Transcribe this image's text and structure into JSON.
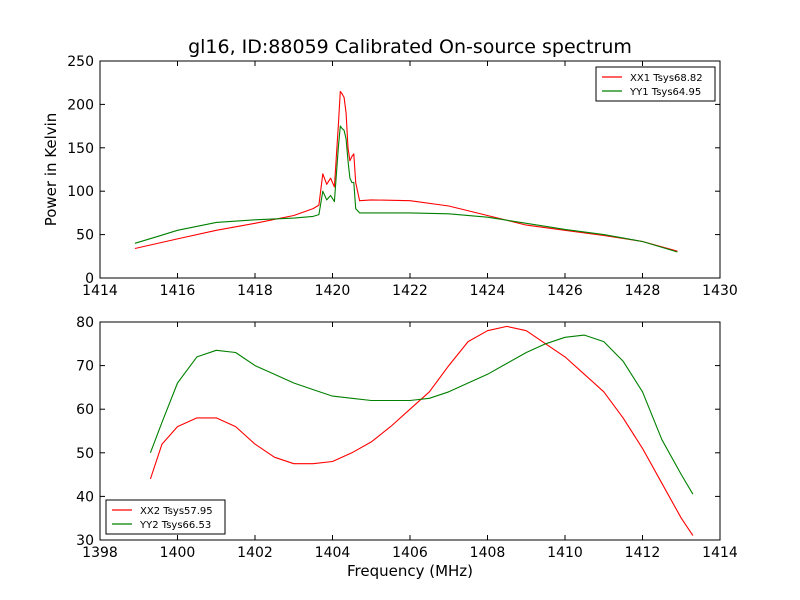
{
  "chart_data": [
    {
      "type": "line",
      "title": "gl16, ID:88059 Calibrated On-source spectrum",
      "xlabel": "",
      "ylabel": "Power in Kelvin",
      "xlim": [
        1414,
        1430
      ],
      "ylim": [
        0,
        250
      ],
      "xticks": [
        "1414",
        "1416",
        "1418",
        "1420",
        "1422",
        "1424",
        "1426",
        "1428",
        "1430"
      ],
      "yticks": [
        "0",
        "50",
        "100",
        "150",
        "200",
        "250"
      ],
      "grid": false,
      "legend_position": "top-right",
      "series": [
        {
          "name": "XX1 Tsys68.82",
          "color": "#ff0000",
          "x": [
            1414.9,
            1416.0,
            1417.0,
            1418.0,
            1419.0,
            1419.5,
            1419.65,
            1419.75,
            1419.85,
            1419.95,
            1420.05,
            1420.15,
            1420.2,
            1420.25,
            1420.3,
            1420.35,
            1420.4,
            1420.45,
            1420.5,
            1420.55,
            1420.6,
            1420.7,
            1421.0,
            1422.0,
            1423.0,
            1424.0,
            1425.0,
            1426.0,
            1427.0,
            1428.0,
            1428.9
          ],
          "y": [
            34,
            45,
            55,
            63,
            72,
            80,
            84,
            120,
            108,
            115,
            105,
            175,
            215,
            212,
            208,
            190,
            150,
            135,
            140,
            143,
            110,
            89,
            90,
            89,
            83,
            72,
            61,
            55,
            49,
            42,
            31
          ]
        },
        {
          "name": "YY1 Tsys64.95",
          "color": "#008000",
          "x": [
            1414.9,
            1415.5,
            1416.0,
            1417.0,
            1418.0,
            1419.0,
            1419.5,
            1419.65,
            1419.75,
            1419.85,
            1419.95,
            1420.05,
            1420.15,
            1420.2,
            1420.25,
            1420.3,
            1420.35,
            1420.4,
            1420.45,
            1420.5,
            1420.55,
            1420.6,
            1420.7,
            1421.0,
            1422.0,
            1423.0,
            1424.0,
            1425.0,
            1426.0,
            1427.0,
            1428.0,
            1428.9
          ],
          "y": [
            40,
            48,
            55,
            64,
            67,
            69,
            71,
            73,
            100,
            90,
            95,
            88,
            150,
            175,
            172,
            170,
            160,
            135,
            115,
            110,
            110,
            80,
            75,
            75,
            75,
            74,
            70,
            63,
            56,
            50,
            42,
            30
          ]
        }
      ]
    },
    {
      "type": "line",
      "title": "",
      "xlabel": "Frequency (MHz)",
      "ylabel": "",
      "xlim": [
        1398,
        1414
      ],
      "ylim": [
        30,
        80
      ],
      "xticks": [
        "1398",
        "1400",
        "1402",
        "1404",
        "1406",
        "1408",
        "1410",
        "1412",
        "1414"
      ],
      "yticks": [
        "30",
        "40",
        "50",
        "60",
        "70",
        "80"
      ],
      "grid": false,
      "legend_position": "bottom-left",
      "series": [
        {
          "name": "XX2 Tsys57.95",
          "color": "#ff0000",
          "x": [
            1399.3,
            1399.6,
            1400.0,
            1400.5,
            1401.0,
            1401.5,
            1402.0,
            1402.5,
            1403.0,
            1403.5,
            1404.0,
            1404.5,
            1405.0,
            1405.5,
            1406.0,
            1406.5,
            1407.0,
            1407.5,
            1408.0,
            1408.5,
            1409.0,
            1409.5,
            1410.0,
            1410.5,
            1411.0,
            1411.5,
            1412.0,
            1412.5,
            1413.0,
            1413.3
          ],
          "y": [
            44,
            52,
            56,
            58,
            58,
            56,
            52,
            49,
            47.5,
            47.5,
            48,
            50,
            52.5,
            56,
            60,
            64,
            70,
            75.5,
            78,
            79,
            78,
            75,
            72,
            68,
            64,
            58,
            51,
            43,
            35,
            31
          ]
        },
        {
          "name": "YY2 Tsys66.53",
          "color": "#008000",
          "x": [
            1399.3,
            1399.6,
            1400.0,
            1400.5,
            1401.0,
            1401.5,
            1402.0,
            1402.5,
            1403.0,
            1403.5,
            1404.0,
            1404.5,
            1405.0,
            1405.5,
            1406.0,
            1406.5,
            1407.0,
            1407.5,
            1408.0,
            1408.5,
            1409.0,
            1409.5,
            1410.0,
            1410.5,
            1411.0,
            1411.5,
            1412.0,
            1412.5,
            1413.0,
            1413.3
          ],
          "y": [
            50,
            57,
            66,
            72,
            73.5,
            73,
            70,
            68,
            66,
            64.5,
            63,
            62.5,
            62,
            62,
            62,
            62.5,
            64,
            66,
            68,
            70.5,
            73,
            75,
            76.5,
            77,
            75.5,
            71,
            64,
            53,
            45,
            40.5
          ]
        }
      ]
    }
  ]
}
